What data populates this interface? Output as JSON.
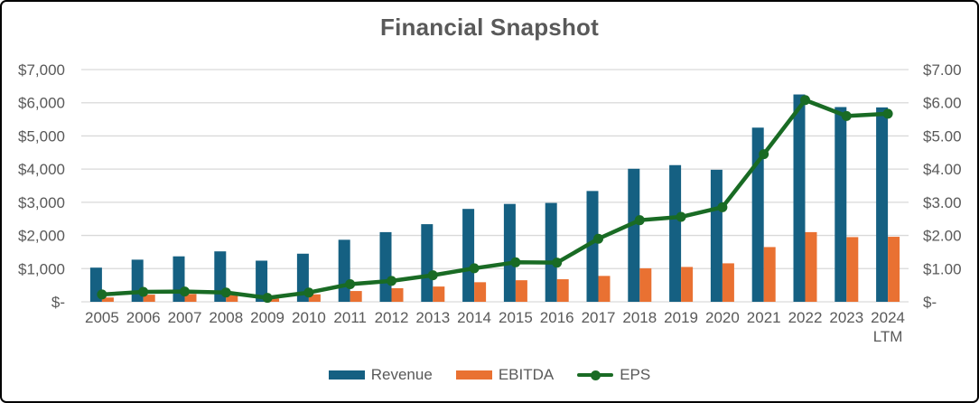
{
  "frame": {
    "background": "#FFFFFF",
    "border_color": "#000000"
  },
  "chart_data": {
    "type": "combo",
    "title": "Financial Snapshot",
    "categories": [
      "2005",
      "2006",
      "2007",
      "2008",
      "2009",
      "2010",
      "2011",
      "2012",
      "2013",
      "2014",
      "2015",
      "2016",
      "2017",
      "2018",
      "2019",
      "2020",
      "2021",
      "2022",
      "2023",
      "2024 LTM"
    ],
    "series": [
      {
        "name": "Revenue",
        "type": "bar",
        "axis": "left",
        "color": "#156082",
        "values": [
          1030,
          1270,
          1370,
          1520,
          1240,
          1450,
          1870,
          2100,
          2340,
          2800,
          2950,
          2980,
          3340,
          4010,
          4120,
          3980,
          5250,
          6250,
          5870,
          5860
        ]
      },
      {
        "name": "EBITDA",
        "type": "bar",
        "axis": "left",
        "color": "#E97132",
        "values": [
          130,
          215,
          235,
          215,
          100,
          225,
          325,
          410,
          460,
          590,
          650,
          680,
          780,
          1010,
          1050,
          1160,
          1650,
          2100,
          1950,
          1960
        ]
      },
      {
        "name": "EPS",
        "type": "line",
        "axis": "right",
        "color": "#196B24",
        "values": [
          0.22,
          0.3,
          0.31,
          0.28,
          0.12,
          0.28,
          0.53,
          0.63,
          0.8,
          1.01,
          1.19,
          1.18,
          1.9,
          2.46,
          2.56,
          2.85,
          4.45,
          6.08,
          5.6,
          5.67
        ]
      }
    ],
    "left_axis": {
      "min": 0,
      "max": 7000,
      "tick_values": [
        0,
        1000,
        2000,
        3000,
        4000,
        5000,
        6000,
        7000
      ],
      "tick_labels": [
        "$-",
        "$1,000",
        "$2,000",
        "$3,000",
        "$4,000",
        "$5,000",
        "$6,000",
        "$7,000"
      ]
    },
    "right_axis": {
      "min": 0,
      "max": 7,
      "tick_values": [
        0,
        1,
        2,
        3,
        4,
        5,
        6,
        7
      ],
      "tick_labels": [
        "$-",
        "$1.00",
        "$2.00",
        "$3.00",
        "$4.00",
        "$5.00",
        "$6.00",
        "$7.00"
      ]
    },
    "grid": true,
    "legend_position": "bottom",
    "colors": {
      "grid": "#D9D9D9",
      "axis_line": "#D9D9D9",
      "text": "#595959",
      "title": "#595959"
    }
  }
}
